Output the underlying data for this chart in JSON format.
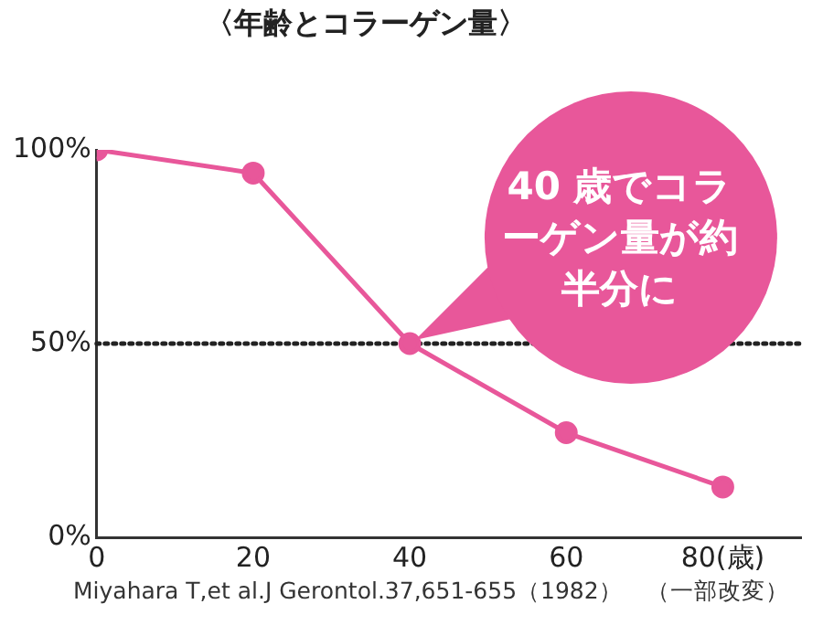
{
  "chart_data": {
    "type": "line",
    "title": "〈年齢とコラーゲン量〉",
    "x": [
      0,
      20,
      40,
      60,
      80
    ],
    "series": [
      {
        "color": "#e8579a",
        "values": [
          100,
          94,
          50,
          27,
          13
        ]
      }
    ],
    "xlim": [
      0,
      90
    ],
    "xticks": [
      0,
      20,
      40,
      60,
      {
        "value": 80,
        "label": "80(歳)"
      }
    ],
    "ylim": [
      0,
      100
    ],
    "yticks": [
      {
        "value": 0,
        "label": "0%"
      },
      {
        "value": 50,
        "label": "50%"
      },
      {
        "value": 100,
        "label": "100%"
      }
    ],
    "grid": false,
    "legend": false,
    "marker": "circle",
    "line_style": "solid",
    "ref_lines": [
      {
        "axis": "y",
        "value": 50,
        "color": "#222222",
        "line_style": "dotted"
      }
    ],
    "annotations": [
      {
        "text": "40 歳でコラーゲン量が約半分に",
        "x": 40,
        "y": 50
      },
      "Miyahara T,et al.J Gerontol.37,651-655（1982）　（一部改変）"
    ]
  }
}
